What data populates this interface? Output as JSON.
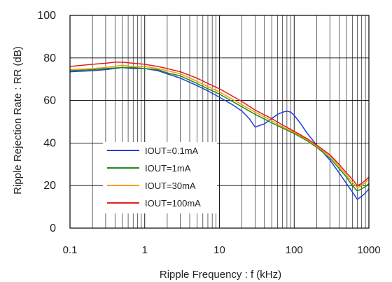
{
  "chart_data": {
    "type": "line",
    "title": "",
    "xlabel": "Ripple Frequency : f (kHz)",
    "ylabel": "Ripple Rejection Rate : RR (dB)",
    "x_scale": "log",
    "xlim": [
      0.1,
      1000
    ],
    "ylim": [
      0,
      100
    ],
    "x_ticks": [
      "0.1",
      "1",
      "10",
      "100",
      "1000"
    ],
    "y_ticks": [
      "0",
      "20",
      "40",
      "60",
      "80",
      "100"
    ],
    "grid": true,
    "legend_position": "lower-left",
    "series": [
      {
        "name": "IOUT=0.1mA",
        "color": "#1f3fd6",
        "x": [
          0.1,
          0.2,
          0.3,
          0.5,
          0.7,
          1,
          1.5,
          2,
          3,
          5,
          7,
          10,
          15,
          20,
          25,
          30,
          40,
          50,
          60,
          70,
          80,
          90,
          100,
          120,
          150,
          200,
          300,
          400,
          500,
          600,
          700,
          800,
          900,
          1000
        ],
        "y": [
          73.5,
          74,
          74.5,
          75.5,
          75,
          75,
          74,
          72.5,
          70.5,
          67,
          64.5,
          61.5,
          58,
          55,
          51.5,
          47.5,
          49,
          51.5,
          53.5,
          54.5,
          55,
          54.5,
          53,
          49.5,
          44.5,
          39,
          32,
          26,
          21,
          17,
          13.5,
          15,
          16.5,
          18.5
        ]
      },
      {
        "name": "IOUT=1mA",
        "color": "#1e8a1e",
        "x": [
          0.1,
          0.2,
          0.3,
          0.5,
          0.7,
          1,
          1.5,
          2,
          3,
          5,
          7,
          10,
          15,
          20,
          30,
          50,
          70,
          100,
          150,
          200,
          300,
          400,
          500,
          600,
          700,
          800,
          900,
          1000
        ],
        "y": [
          74,
          74.5,
          75,
          75.5,
          75.5,
          75,
          74.5,
          73,
          71.5,
          68,
          65.5,
          63,
          59.5,
          57,
          53.5,
          49.5,
          47,
          44.5,
          41,
          38,
          33,
          28,
          24,
          20,
          17.5,
          18.5,
          19.5,
          21
        ]
      },
      {
        "name": "IOUT=30mA",
        "color": "#f0a000",
        "x": [
          0.1,
          0.2,
          0.3,
          0.5,
          0.7,
          1,
          1.5,
          2,
          3,
          5,
          7,
          10,
          15,
          20,
          30,
          50,
          70,
          100,
          150,
          200,
          300,
          400,
          500,
          600,
          700,
          800,
          900,
          1000
        ],
        "y": [
          74.5,
          75,
          75.5,
          76.5,
          76,
          76,
          75,
          74,
          72.5,
          69,
          66.5,
          64,
          60.5,
          58,
          54.5,
          50.5,
          47.5,
          45,
          41.5,
          38.5,
          34,
          29,
          25,
          21.5,
          19,
          20,
          21.5,
          23
        ]
      },
      {
        "name": "IOUT=100mA",
        "color": "#e01e1e",
        "x": [
          0.1,
          0.2,
          0.3,
          0.4,
          0.5,
          0.7,
          1,
          1.5,
          2,
          3,
          5,
          7,
          10,
          15,
          20,
          30,
          50,
          70,
          100,
          150,
          200,
          300,
          400,
          500,
          600,
          700,
          800,
          900,
          1000
        ],
        "y": [
          76,
          77,
          77.5,
          78,
          78,
          77.5,
          77,
          76,
          75,
          73.5,
          70.5,
          68,
          65.5,
          62,
          59.5,
          55.5,
          51.5,
          48.5,
          45.5,
          42,
          39,
          34.5,
          30,
          26,
          23,
          20,
          21,
          22.5,
          24
        ]
      }
    ]
  }
}
